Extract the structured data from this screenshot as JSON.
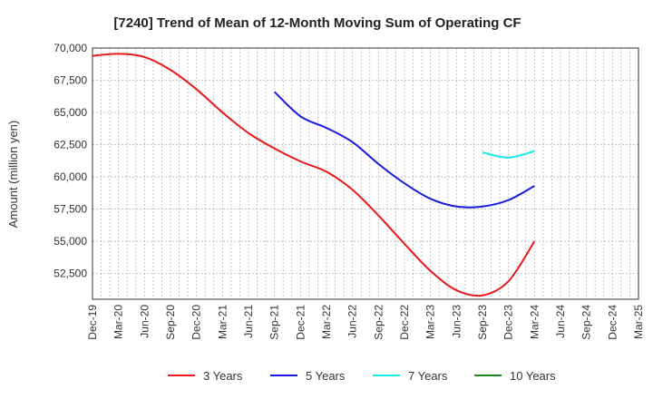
{
  "chart_data": {
    "type": "line",
    "title": "[7240]  Trend of Mean of 12-Month Moving Sum of Operating CF",
    "xlabel": "",
    "ylabel": "Amount (million yen)",
    "ylim": [
      50500,
      70000
    ],
    "yticks": [
      52500,
      55000,
      57500,
      60000,
      62500,
      65000,
      67500,
      70000
    ],
    "ytick_labels": [
      "52,500",
      "55,000",
      "57,500",
      "60,000",
      "62,500",
      "65,000",
      "67,500",
      "70,000"
    ],
    "x_categories": [
      "Dec-19",
      "Mar-20",
      "Jun-20",
      "Sep-20",
      "Dec-20",
      "Mar-21",
      "Jun-21",
      "Sep-21",
      "Dec-21",
      "Mar-22",
      "Jun-22",
      "Sep-22",
      "Dec-22",
      "Mar-23",
      "Jun-23",
      "Sep-23",
      "Dec-23",
      "Mar-24",
      "Jun-24",
      "Sep-24",
      "Dec-24",
      "Mar-25"
    ],
    "grid": true,
    "legend_position": "bottom",
    "series": [
      {
        "name": "3 Years",
        "color": "#e8191a",
        "x": [
          "Dec-19",
          "Mar-20",
          "Jun-20",
          "Sep-20",
          "Dec-20",
          "Mar-21",
          "Jun-21",
          "Sep-21",
          "Dec-21",
          "Mar-22",
          "Jun-22",
          "Sep-22",
          "Dec-22",
          "Mar-23",
          "Jun-23",
          "Sep-23",
          "Dec-23",
          "Mar-24"
        ],
        "values": [
          69400,
          69550,
          69300,
          68300,
          66800,
          65000,
          63400,
          62200,
          61200,
          60400,
          59000,
          57000,
          54800,
          52700,
          51200,
          50800,
          51900,
          55000
        ]
      },
      {
        "name": "5 Years",
        "color": "#1a1adf",
        "x": [
          "Sep-21",
          "Dec-21",
          "Mar-22",
          "Jun-22",
          "Sep-22",
          "Dec-22",
          "Mar-23",
          "Jun-23",
          "Sep-23",
          "Dec-23",
          "Mar-24"
        ],
        "values": [
          66600,
          64700,
          63800,
          62700,
          61000,
          59500,
          58300,
          57700,
          57700,
          58200,
          59300
        ]
      },
      {
        "name": "7 Years",
        "color": "#18e8e8",
        "x": [
          "Sep-23",
          "Dec-23",
          "Mar-24"
        ],
        "values": [
          61900,
          61500,
          62000
        ]
      },
      {
        "name": "10 Years",
        "color": "#1a8c1a",
        "x": [],
        "values": []
      }
    ]
  }
}
